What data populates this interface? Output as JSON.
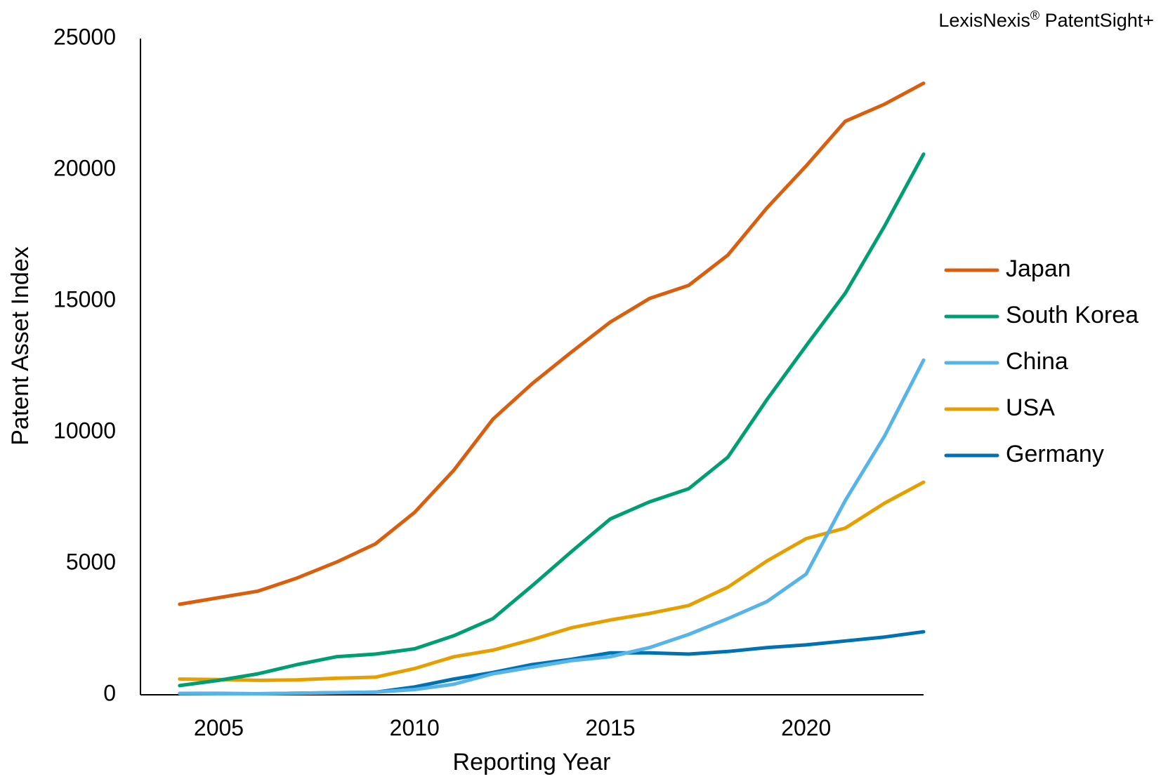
{
  "source": {
    "brand": "LexisNexis",
    "mark": "®",
    "product": " PatentSight+"
  },
  "chart_data": {
    "type": "line",
    "title": "",
    "xlabel": "Reporting Year",
    "ylabel": "Patent Asset Index",
    "xlim": [
      2003,
      2023
    ],
    "ylim": [
      0,
      25000
    ],
    "x_ticks": [
      2005,
      2010,
      2015,
      2020
    ],
    "y_ticks": [
      0,
      5000,
      10000,
      15000,
      20000,
      25000
    ],
    "legend_position": "right",
    "grid": false,
    "x": [
      2004,
      2005,
      2006,
      2007,
      2008,
      2009,
      2010,
      2011,
      2012,
      2013,
      2014,
      2015,
      2016,
      2017,
      2018,
      2019,
      2020,
      2021,
      2022,
      2023
    ],
    "series": [
      {
        "name": "Japan",
        "color": "#d95f0e",
        "values": [
          3450,
          3700,
          3950,
          4450,
          5050,
          5750,
          6950,
          8550,
          10500,
          11850,
          13050,
          14200,
          15100,
          15600,
          16750,
          18550,
          20150,
          21850,
          22500,
          23300
        ]
      },
      {
        "name": "South Korea",
        "color": "#009e73",
        "values": [
          350,
          550,
          800,
          1150,
          1450,
          1550,
          1750,
          2250,
          2900,
          4150,
          5450,
          6700,
          7350,
          7850,
          9050,
          11250,
          13300,
          15300,
          17850,
          20600
        ]
      },
      {
        "name": "China",
        "color": "#56b4e9",
        "values": [
          50,
          40,
          40,
          60,
          80,
          100,
          200,
          400,
          800,
          1050,
          1300,
          1450,
          1800,
          2300,
          2900,
          3550,
          4600,
          7400,
          9850,
          12750
        ]
      },
      {
        "name": "USA",
        "color": "#e69f00",
        "values": [
          600,
          580,
          550,
          570,
          630,
          670,
          1000,
          1450,
          1700,
          2100,
          2550,
          2850,
          3100,
          3400,
          4100,
          5100,
          5950,
          6350,
          7300,
          8100
        ]
      },
      {
        "name": "Germany",
        "color": "#0072b2",
        "values": [
          50,
          50,
          40,
          60,
          80,
          100,
          300,
          600,
          850,
          1150,
          1350,
          1600,
          1600,
          1550,
          1650,
          1800,
          1900,
          2050,
          2200,
          2400
        ]
      }
    ]
  }
}
